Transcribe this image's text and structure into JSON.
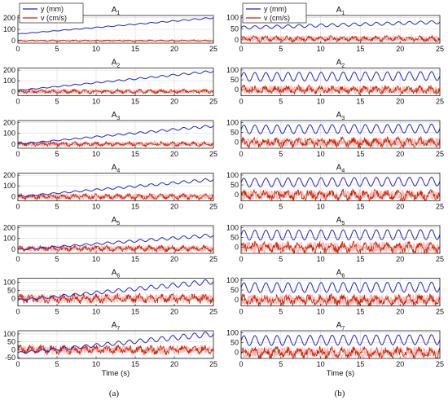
{
  "colors": {
    "y_series": "#2222cc",
    "v_series": "#cc2200",
    "v_fill": "#ff7a7a",
    "grid": "#d9d9d9",
    "axis": "#222222"
  },
  "chart_data": [
    {
      "panel": "(a)",
      "type": "line",
      "title_base": "A",
      "title_sub": "1",
      "x": [
        0,
        25
      ],
      "xlim": [
        0,
        25
      ],
      "xticks": [
        "0",
        "5",
        "10",
        "15",
        "20",
        "25"
      ],
      "yticks": [
        "0",
        "100",
        "200"
      ],
      "ylim": [
        -20,
        220
      ],
      "series": [
        {
          "name": "y (mm)",
          "start": 60,
          "end": 200,
          "amp": 6,
          "cycles": 18
        },
        {
          "name": "v (cm/s)",
          "center": 2,
          "amp": 7
        }
      ],
      "legend": {
        "entries": [
          "y (mm)",
          "v (cm/s)"
        ],
        "placement": "top-left"
      }
    },
    {
      "panel": "(a)",
      "type": "line",
      "title_base": "A",
      "title_sub": "2",
      "xlim": [
        0,
        25
      ],
      "xticks": [
        "0",
        "5",
        "10",
        "15",
        "20",
        "25"
      ],
      "yticks": [
        "0",
        "100",
        "200"
      ],
      "ylim": [
        -40,
        220
      ],
      "series": [
        {
          "name": "y (mm)",
          "start": 10,
          "end": 190,
          "amp": 10,
          "cycles": 18
        },
        {
          "name": "v (cm/s)",
          "center": 0,
          "amp": 20
        }
      ]
    },
    {
      "panel": "(a)",
      "type": "line",
      "title_base": "A",
      "title_sub": "3",
      "xlim": [
        0,
        25
      ],
      "xticks": [
        "0",
        "5",
        "10",
        "15",
        "20",
        "25"
      ],
      "yticks": [
        "0",
        "100",
        "200"
      ],
      "ylim": [
        -40,
        220
      ],
      "series": [
        {
          "name": "y (mm)",
          "start": 0,
          "end": 170,
          "amp": 12,
          "cycles": 18
        },
        {
          "name": "v (cm/s)",
          "center": 0,
          "amp": 22
        }
      ]
    },
    {
      "panel": "(a)",
      "type": "line",
      "title_base": "A",
      "title_sub": "4",
      "xlim": [
        0,
        25
      ],
      "xticks": [
        "0",
        "5",
        "10",
        "15",
        "20",
        "25"
      ],
      "yticks": [
        "0",
        "100",
        "200"
      ],
      "ylim": [
        -40,
        220
      ],
      "series": [
        {
          "name": "y (mm)",
          "start": 0,
          "end": 160,
          "amp": 14,
          "cycles": 18
        },
        {
          "name": "v (cm/s)",
          "center": 0,
          "amp": 28
        }
      ]
    },
    {
      "panel": "(a)",
      "type": "line",
      "title_base": "A",
      "title_sub": "5",
      "xlim": [
        0,
        25
      ],
      "xticks": [
        "0",
        "5",
        "10",
        "15",
        "20",
        "25"
      ],
      "yticks": [
        "0",
        "100",
        "200"
      ],
      "ylim": [
        -40,
        220
      ],
      "series": [
        {
          "name": "y (mm)",
          "start": -5,
          "end": 130,
          "amp": 16,
          "cycles": 18
        },
        {
          "name": "v (cm/s)",
          "center": 5,
          "amp": 30
        }
      ]
    },
    {
      "panel": "(a)",
      "type": "line",
      "title_base": "A",
      "title_sub": "6",
      "xlim": [
        0,
        25
      ],
      "xticks": [
        "0",
        "5",
        "10",
        "15",
        "20",
        "25"
      ],
      "yticks": [
        "0",
        "50",
        "100"
      ],
      "ylim": [
        -45,
        125
      ],
      "series": [
        {
          "name": "y (mm)",
          "start": -10,
          "end": 105,
          "amp": 16,
          "cycles": 18
        },
        {
          "name": "v (cm/s)",
          "center": 0,
          "amp": 30
        }
      ]
    },
    {
      "panel": "(a)",
      "type": "line",
      "title_base": "A",
      "title_sub": "7",
      "xlim": [
        0,
        25
      ],
      "xticks": [
        "0",
        "5",
        "10",
        "15",
        "20",
        "25"
      ],
      "yticks": [
        "-50",
        "0",
        "50",
        "100"
      ],
      "ylim": [
        -55,
        120
      ],
      "series": [
        {
          "name": "y (mm)",
          "start": -20,
          "end": 100,
          "amp": 18,
          "cycles": 18
        },
        {
          "name": "v (cm/s)",
          "center": 0,
          "amp": 30
        }
      ],
      "xlabel": "Time (s)"
    },
    {
      "panel": "(b)",
      "type": "line",
      "title_base": "A",
      "title_sub": "1",
      "xlim": [
        0,
        25
      ],
      "xticks": [
        "0",
        "5",
        "10",
        "15",
        "20",
        "25"
      ],
      "yticks": [
        "0",
        "50",
        "100"
      ],
      "ylim": [
        -15,
        110
      ],
      "series": [
        {
          "name": "y (mm)",
          "start": 55,
          "end": 80,
          "amp": 7,
          "cycles": 18
        },
        {
          "name": "v (cm/s)",
          "center": 5,
          "amp": 14
        }
      ],
      "legend": {
        "entries": [
          "y (mm)",
          "v (cm/s)"
        ],
        "placement": "top-left"
      }
    },
    {
      "panel": "(b)",
      "type": "line",
      "title_base": "A",
      "title_sub": "2",
      "xlim": [
        0,
        25
      ],
      "xticks": [
        "0",
        "5",
        "10",
        "15",
        "20",
        "25"
      ],
      "yticks": [
        "0",
        "50",
        "100"
      ],
      "ylim": [
        -30,
        110
      ],
      "series": [
        {
          "name": "y (mm)",
          "start": 65,
          "end": 70,
          "amp": 22,
          "cycles": 18
        },
        {
          "name": "v (cm/s)",
          "center": 0,
          "amp": 22
        }
      ]
    },
    {
      "panel": "(b)",
      "type": "line",
      "title_base": "A",
      "title_sub": "3",
      "xlim": [
        0,
        25
      ],
      "xticks": [
        "0",
        "5",
        "10",
        "15",
        "20",
        "25"
      ],
      "yticks": [
        "0",
        "50",
        "100"
      ],
      "ylim": [
        -30,
        110
      ],
      "series": [
        {
          "name": "y (mm)",
          "start": 65,
          "end": 70,
          "amp": 22,
          "cycles": 18
        },
        {
          "name": "v (cm/s)",
          "center": 0,
          "amp": 26
        }
      ]
    },
    {
      "panel": "(b)",
      "type": "line",
      "title_base": "A",
      "title_sub": "4",
      "xlim": [
        0,
        25
      ],
      "xticks": [
        "0",
        "5",
        "10",
        "15",
        "20",
        "25"
      ],
      "yticks": [
        "0",
        "50",
        "100"
      ],
      "ylim": [
        -30,
        110
      ],
      "series": [
        {
          "name": "y (mm)",
          "start": 62,
          "end": 68,
          "amp": 22,
          "cycles": 18
        },
        {
          "name": "v (cm/s)",
          "center": 0,
          "amp": 28
        }
      ]
    },
    {
      "panel": "(b)",
      "type": "line",
      "title_base": "A",
      "title_sub": "5",
      "xlim": [
        0,
        25
      ],
      "xticks": [
        "0",
        "5",
        "10",
        "15",
        "20",
        "25"
      ],
      "yticks": [
        "0",
        "50",
        "100"
      ],
      "ylim": [
        -30,
        110
      ],
      "series": [
        {
          "name": "y (mm)",
          "start": 62,
          "end": 65,
          "amp": 25,
          "cycles": 18
        },
        {
          "name": "v (cm/s)",
          "center": 0,
          "amp": 30
        }
      ]
    },
    {
      "panel": "(b)",
      "type": "line",
      "title_base": "A",
      "title_sub": "6",
      "xlim": [
        0,
        25
      ],
      "xticks": [
        "0",
        "5",
        "10",
        "15",
        "20",
        "25"
      ],
      "yticks": [
        "0",
        "50",
        "100"
      ],
      "ylim": [
        -30,
        110
      ],
      "series": [
        {
          "name": "y (mm)",
          "start": 62,
          "end": 65,
          "amp": 25,
          "cycles": 18
        },
        {
          "name": "v (cm/s)",
          "center": 0,
          "amp": 30
        }
      ]
    },
    {
      "panel": "(b)",
      "type": "line",
      "title_base": "A",
      "title_sub": "7",
      "xlim": [
        0,
        25
      ],
      "xticks": [
        "0",
        "5",
        "10",
        "15",
        "20",
        "25"
      ],
      "yticks": [
        "0",
        "50",
        "100"
      ],
      "ylim": [
        -30,
        110
      ],
      "series": [
        {
          "name": "y (mm)",
          "start": 60,
          "end": 65,
          "amp": 25,
          "cycles": 18
        },
        {
          "name": "v (cm/s)",
          "center": 0,
          "amp": 30
        }
      ],
      "xlabel": "Time (s)"
    }
  ],
  "panel_labels": [
    "(a)",
    "(b)"
  ]
}
